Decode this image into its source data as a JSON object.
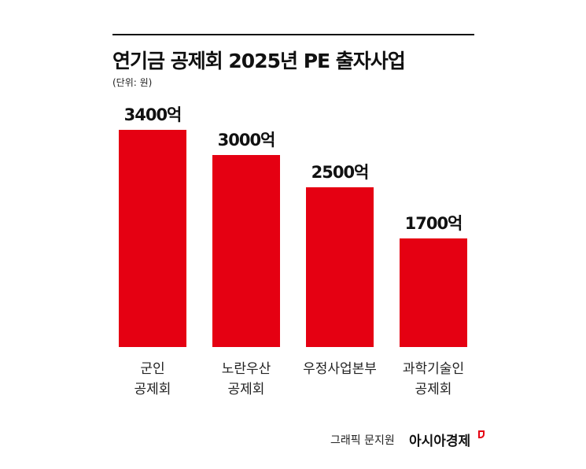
{
  "chart_data": {
    "type": "bar",
    "title": "연기금 공제회 2025년 PE 출자사업",
    "subtitle": "(단위: 원)",
    "categories": [
      "군인\n공제회",
      "노란우산\n공제회",
      "우정사업본부",
      "과학기술인\n공제회"
    ],
    "values": [
      3400,
      3000,
      2500,
      1700
    ],
    "value_labels": [
      "3400억",
      "3000억",
      "2500억",
      "1700억"
    ],
    "color": "#e50012",
    "credit": "그래픽 문지원",
    "brand": "아시아경제"
  }
}
